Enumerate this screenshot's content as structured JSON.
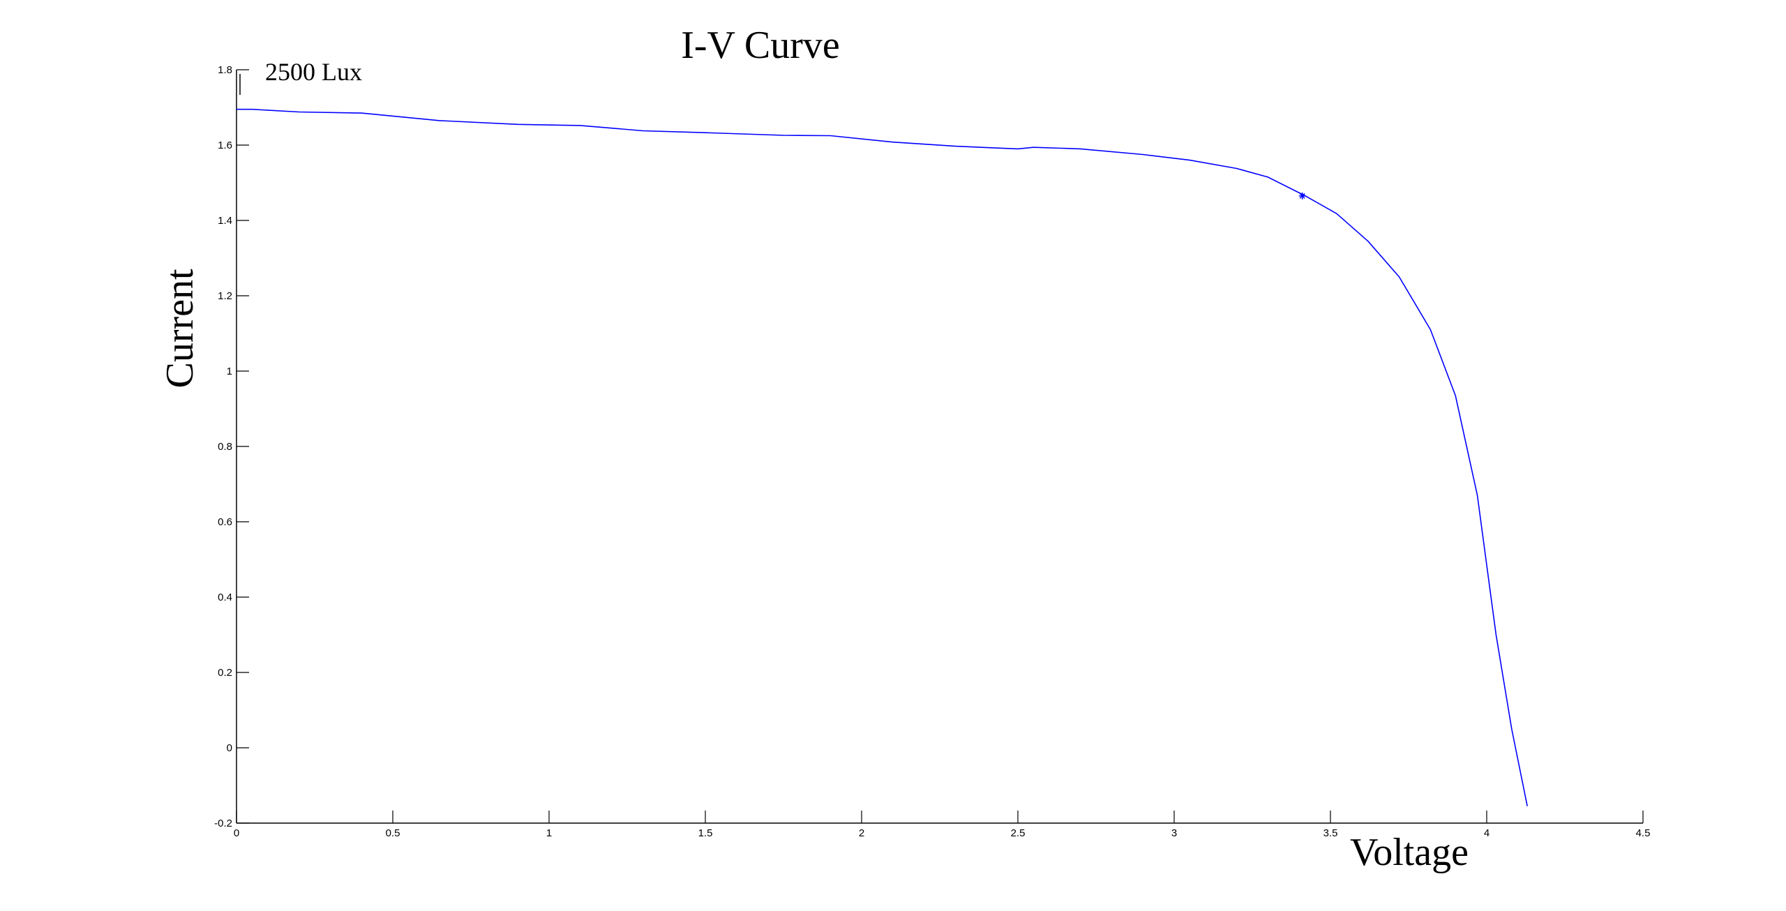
{
  "chart_data": {
    "type": "line",
    "title": "I-V Curve",
    "xlabel": "Voltage",
    "ylabel": "Current",
    "annotation": "2500 Lux",
    "xlim": [
      0,
      4.5
    ],
    "ylim": [
      -0.2,
      1.8
    ],
    "xticks": [
      0,
      0.5,
      1,
      1.5,
      2,
      2.5,
      3,
      3.5,
      4,
      4.5
    ],
    "yticks": [
      -0.2,
      0,
      0.2,
      0.4,
      0.6,
      0.8,
      1,
      1.2,
      1.4,
      1.6,
      1.8
    ],
    "xtick_labels": [
      "0",
      "0.5",
      "1",
      "1.5",
      "2",
      "2.5",
      "3",
      "3.5",
      "4",
      "4.5"
    ],
    "ytick_labels": [
      "-0.2",
      "0",
      "0.2",
      "0.4",
      "0.6",
      "0.8",
      "1",
      "1.2",
      "1.4",
      "1.6",
      "1.8"
    ],
    "grid": false,
    "line_color": "#0000ff",
    "series": [
      {
        "x": [
          0,
          0.05,
          0.2,
          0.4,
          0.65,
          0.9,
          1.1,
          1.3,
          1.5,
          1.75,
          1.9,
          2.1,
          2.3,
          2.5,
          2.55,
          2.7,
          2.9,
          3.05,
          3.2,
          3.3,
          3.42,
          3.52,
          3.62,
          3.72,
          3.82,
          3.9,
          3.97,
          4.03,
          4.08,
          4.13
        ],
        "y": [
          1.695,
          1.695,
          1.688,
          1.685,
          1.665,
          1.655,
          1.652,
          1.638,
          1.633,
          1.626,
          1.625,
          1.608,
          1.597,
          1.59,
          1.594,
          1.59,
          1.575,
          1.56,
          1.538,
          1.515,
          1.465,
          1.418,
          1.345,
          1.25,
          1.11,
          0.935,
          0.67,
          0.3,
          0.05,
          -0.155
        ]
      }
    ],
    "marker_point": {
      "x": 3.41,
      "y": 1.465
    }
  }
}
